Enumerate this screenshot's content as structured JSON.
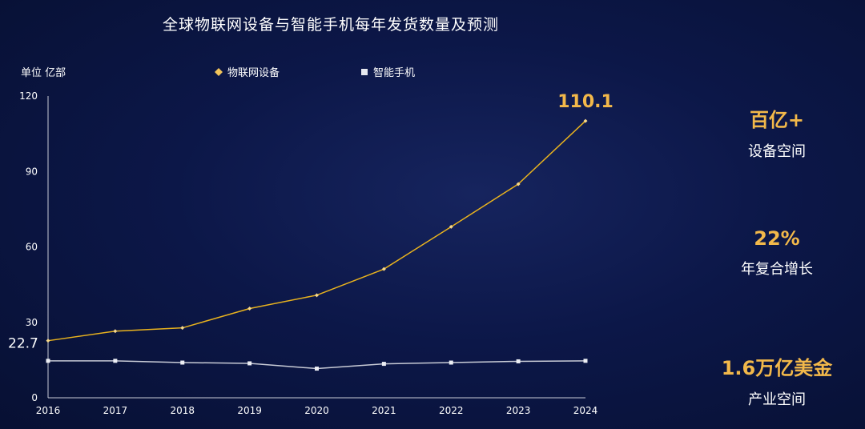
{
  "chart_data": {
    "type": "line",
    "title": "全球物联网设备与智能手机每年发货数量及预测",
    "unit_label": "单位 亿部",
    "x": [
      "2016",
      "2017",
      "2018",
      "2019",
      "2020",
      "2021",
      "2022",
      "2023",
      "2024"
    ],
    "ylim": [
      0,
      120
    ],
    "yticks": [
      0,
      30,
      60,
      90,
      120
    ],
    "grid": false,
    "legend_position": "top",
    "series": [
      {
        "name": "物联网设备",
        "color": "#e8b21e",
        "values": [
          22.7,
          26.5,
          27.8,
          35.5,
          40.8,
          51.2,
          68.0,
          85.0,
          110.1
        ]
      },
      {
        "name": "智能手机",
        "color": "#c8cbd6",
        "values": [
          14.7,
          14.7,
          14.0,
          13.7,
          11.6,
          13.5,
          14.0,
          14.5,
          14.7
        ]
      }
    ],
    "annotations": {
      "start_label": "22.7",
      "end_label": "110.1"
    }
  },
  "stats": [
    {
      "value": "百亿+",
      "label": "设备空间"
    },
    {
      "value": "22%",
      "label": "年复合增长"
    },
    {
      "value": "1.6万亿美金",
      "label": "产业空间"
    }
  ],
  "colors": {
    "accent": "#f2b84a",
    "axis": "#c8cbd6"
  }
}
